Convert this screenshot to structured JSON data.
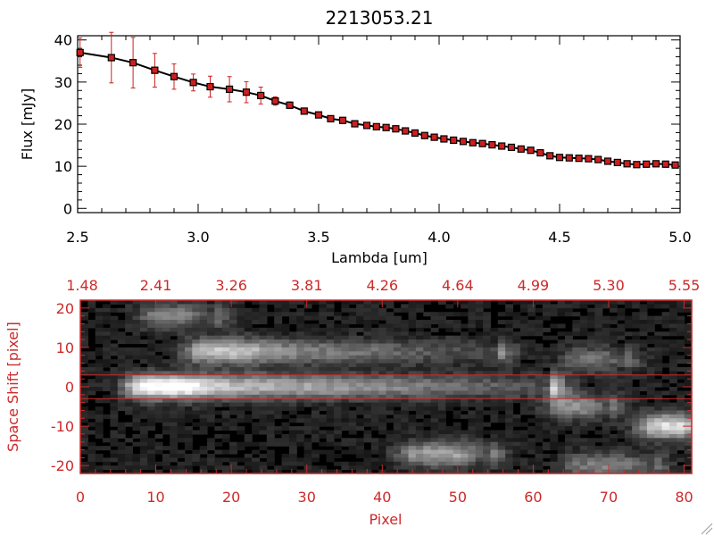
{
  "chart_data": [
    {
      "type": "line",
      "title": "2213053.21",
      "xlabel": "Lambda [um]",
      "ylabel": "Flux [mJy]",
      "xlim": [
        2.5,
        5.0
      ],
      "ylim": [
        -1,
        41
      ],
      "xticks": [
        "2.5",
        "3.0",
        "3.5",
        "4.0",
        "4.5",
        "5.0"
      ],
      "yticks": [
        "0",
        "10",
        "20",
        "30",
        "40"
      ],
      "line_color": "#000000",
      "marker_color": "#cc2020",
      "error_color": "#cc2020",
      "x": [
        2.51,
        2.64,
        2.73,
        2.82,
        2.9,
        2.98,
        3.05,
        3.13,
        3.2,
        3.26,
        3.32,
        3.38,
        3.44,
        3.5,
        3.55,
        3.6,
        3.65,
        3.7,
        3.74,
        3.78,
        3.82,
        3.86,
        3.9,
        3.94,
        3.98,
        4.02,
        4.06,
        4.1,
        4.14,
        4.18,
        4.22,
        4.26,
        4.3,
        4.34,
        4.38,
        4.42,
        4.46,
        4.5,
        4.54,
        4.58,
        4.62,
        4.66,
        4.7,
        4.74,
        4.78,
        4.82,
        4.86,
        4.9,
        4.94,
        4.98
      ],
      "y": [
        37.0,
        35.8,
        34.6,
        32.8,
        31.3,
        29.9,
        28.9,
        28.3,
        27.6,
        26.8,
        25.5,
        24.5,
        23.1,
        22.2,
        21.3,
        20.9,
        20.1,
        19.7,
        19.4,
        19.2,
        18.9,
        18.4,
        17.9,
        17.3,
        16.9,
        16.5,
        16.2,
        15.9,
        15.6,
        15.4,
        15.1,
        14.8,
        14.5,
        14.1,
        13.8,
        13.2,
        12.5,
        12.1,
        12.0,
        11.9,
        11.8,
        11.6,
        11.2,
        10.9,
        10.6,
        10.4,
        10.5,
        10.6,
        10.5,
        10.3
      ],
      "yerr": [
        3.5,
        6.0,
        6.0,
        4.0,
        3.0,
        2.0,
        2.5,
        3.0,
        2.5,
        2.0,
        1.0,
        0.8,
        0.6,
        0.5,
        0.5,
        0.4,
        0.4,
        0.4,
        0.4,
        0.4,
        0.4,
        0.4,
        0.4,
        0.4,
        0.4,
        0.4,
        0.4,
        0.4,
        0.4,
        0.4,
        0.4,
        0.4,
        0.4,
        0.4,
        0.4,
        0.4,
        0.4,
        0.4,
        0.4,
        0.4,
        0.4,
        0.4,
        0.4,
        0.4,
        0.4,
        0.4,
        0.4,
        0.4,
        0.4,
        0.4
      ]
    },
    {
      "type": "heatmap",
      "xlabel": "Pixel",
      "ylabel": "Space Shift [pixel]",
      "xlim": [
        0,
        81
      ],
      "ylim": [
        -22,
        22
      ],
      "xticks": [
        "0",
        "10",
        "20",
        "30",
        "40",
        "50",
        "60",
        "70",
        "80"
      ],
      "yticks": [
        "20",
        "10",
        "0",
        "-10",
        "-20"
      ],
      "top_ticks": [
        "1.48",
        "2.41",
        "3.26",
        "3.81",
        "4.26",
        "4.64",
        "4.99",
        "5.30",
        "5.55"
      ],
      "axis_color": "#cc2a2a",
      "colormap": "gray",
      "extraction_window": [
        -3,
        3
      ],
      "sources": [
        {
          "x": [
            8,
            62
          ],
          "y": 0,
          "peak_x": 12,
          "peak": 1.0
        },
        {
          "x": [
            16,
            55
          ],
          "y": 9,
          "peak_x": 20,
          "peak": 0.7
        },
        {
          "x": [
            10,
            18
          ],
          "y": 18,
          "peak_x": 13,
          "peak": 0.4
        },
        {
          "x": [
            44,
            54
          ],
          "y": -17,
          "peak_x": 49,
          "peak": 0.55
        },
        {
          "x": [
            76,
            81
          ],
          "y": -10,
          "peak_x": 80,
          "peak": 0.8
        },
        {
          "x": [
            64,
            70
          ],
          "y": -5,
          "peak_x": 67,
          "peak": 0.45
        },
        {
          "x": [
            66,
            72
          ],
          "y": 7,
          "peak_x": 69,
          "peak": 0.35
        },
        {
          "x": [
            66,
            76
          ],
          "y": -20,
          "peak_x": 71,
          "peak": 0.4
        }
      ]
    }
  ]
}
